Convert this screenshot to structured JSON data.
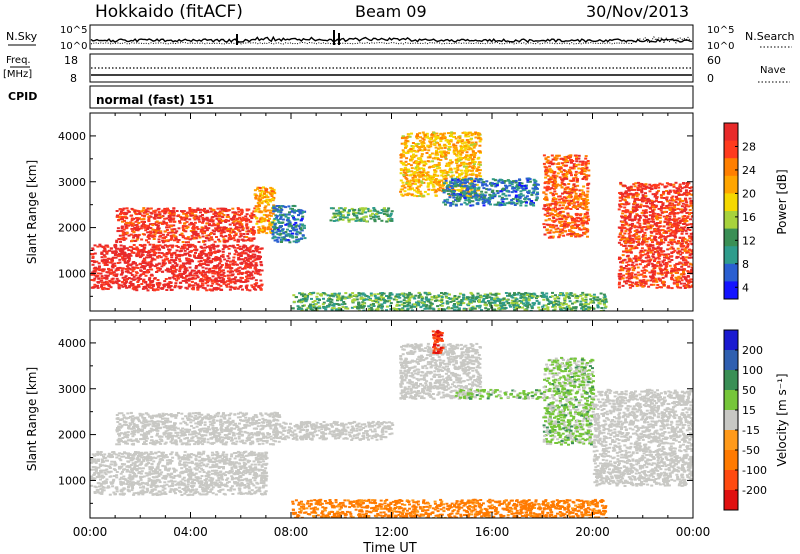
{
  "header": {
    "station": "Hokkaido (fitACF)",
    "beam": "Beam 09",
    "date": "30/Nov/2013"
  },
  "strips": {
    "nsky_label": "N.Sky",
    "nsearch_label": "N.Search",
    "freq_label_1": "Freq.",
    "freq_label_2": "[MHz]",
    "nave_label": "Nave",
    "cpid_label": "CPID",
    "cpid_text": "normal (fast) 151",
    "noise_ticks": [
      "10^5",
      "10^0"
    ],
    "freq_ticks": [
      "18",
      "8"
    ],
    "nave_ticks": [
      "60",
      "0"
    ]
  },
  "chart_data": [
    {
      "type": "heatmap",
      "name": "power",
      "xlabel": "",
      "ylabel": "Slant Range [km]",
      "xlim": [
        0,
        24
      ],
      "ylim": [
        180,
        4500
      ],
      "yticks": [
        1000,
        2000,
        3000,
        4000
      ],
      "colorbar": {
        "label": "Power [dB]",
        "ticks": [
          28,
          24,
          20,
          16,
          12,
          8,
          4
        ],
        "colors": [
          "#e82a2a",
          "#ff3b1e",
          "#ff7f00",
          "#ffa500",
          "#f5d800",
          "#a7d23c",
          "#3a8f55",
          "#2f9c8c",
          "#2a5fd1",
          "#1414ff"
        ]
      },
      "regions": [
        {
          "t0": 0.0,
          "t1": 6.8,
          "r0": 650,
          "r1": 1650,
          "value": 28
        },
        {
          "t0": 1.0,
          "t1": 6.5,
          "r0": 1700,
          "r1": 2450,
          "value": 26
        },
        {
          "t0": 6.5,
          "t1": 7.3,
          "r0": 1900,
          "r1": 2900,
          "value": 20
        },
        {
          "t0": 7.2,
          "t1": 8.5,
          "r0": 1700,
          "r1": 2500,
          "value": 6
        },
        {
          "t0": 9.5,
          "t1": 12.0,
          "r0": 2150,
          "r1": 2450,
          "value": 10
        },
        {
          "t0": 12.3,
          "t1": 15.5,
          "r0": 2700,
          "r1": 4100,
          "value": 18
        },
        {
          "t0": 14.0,
          "t1": 17.8,
          "r0": 2500,
          "r1": 3100,
          "value": 6
        },
        {
          "t0": 18.0,
          "t1": 19.8,
          "r0": 1800,
          "r1": 3600,
          "value": 24
        },
        {
          "t0": 21.0,
          "t1": 24.0,
          "r0": 700,
          "r1": 3000,
          "value": 26
        },
        {
          "t0": 8.0,
          "t1": 20.5,
          "r0": 200,
          "r1": 600,
          "value": 10
        }
      ]
    },
    {
      "type": "heatmap",
      "name": "velocity",
      "xlabel": "Time UT",
      "ylabel": "Slant Range [km]",
      "xlim": [
        0,
        24
      ],
      "ylim": [
        180,
        4500
      ],
      "yticks": [
        1000,
        2000,
        3000,
        4000
      ],
      "xticks": [
        "00:00",
        "04:00",
        "08:00",
        "12:00",
        "16:00",
        "20:00",
        "00:00"
      ],
      "colorbar": {
        "label": "Velocity [m s⁻¹]",
        "ticks": [
          "200",
          "100",
          "50",
          "15",
          "-15",
          "-50",
          "-100",
          "-200"
        ],
        "colors": [
          "#1a1ad0",
          "#2f5fb0",
          "#3a8f55",
          "#76c63a",
          "#c8c8c4",
          "#ff9a1a",
          "#ff7a00",
          "#ff4a10",
          "#e01010"
        ]
      },
      "regions": [
        {
          "t0": 0.0,
          "t1": 7.0,
          "r0": 700,
          "r1": 1650,
          "value": 0
        },
        {
          "t0": 1.0,
          "t1": 7.5,
          "r0": 1800,
          "r1": 2500,
          "value": 0
        },
        {
          "t0": 7.5,
          "t1": 12.0,
          "r0": 1900,
          "r1": 2300,
          "value": 0
        },
        {
          "t0": 12.3,
          "t1": 15.5,
          "r0": 2800,
          "r1": 4000,
          "value": 0
        },
        {
          "t0": 14.5,
          "t1": 18.0,
          "r0": 2800,
          "r1": 3000,
          "value": 20
        },
        {
          "t0": 18.0,
          "t1": 20.0,
          "r0": 1800,
          "r1": 3700,
          "value": 20
        },
        {
          "t0": 20.0,
          "t1": 24.0,
          "r0": 900,
          "r1": 3000,
          "value": 0
        },
        {
          "t0": 8.0,
          "t1": 20.5,
          "r0": 200,
          "r1": 600,
          "value": -60
        },
        {
          "t0": 13.6,
          "t1": 14.0,
          "r0": 3800,
          "r1": 4300,
          "value": -200
        }
      ]
    }
  ]
}
